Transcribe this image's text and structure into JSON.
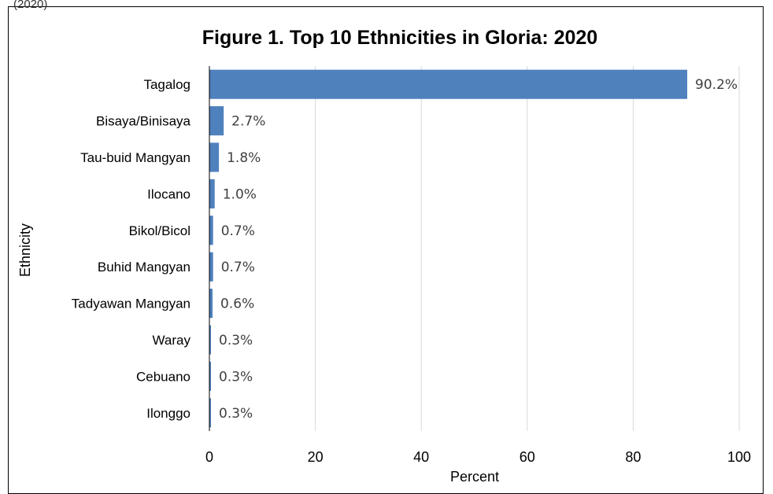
{
  "page": {
    "top_caption": "(2020)"
  },
  "chart_data": {
    "type": "bar",
    "orientation": "horizontal",
    "title": "Figure 1. Top 10 Ethnicities in Gloria: 2020",
    "xlabel": "Percent",
    "ylabel": "Ethnicity",
    "xlim": [
      0,
      100
    ],
    "xticks": [
      0,
      20,
      40,
      60,
      80,
      100
    ],
    "grid": "vertical",
    "bar_color": "#4F81BD",
    "categories": [
      "Tagalog",
      "Bisaya/Binisaya",
      "Tau-buid Mangyan",
      "Ilocano",
      "Bikol/Bicol",
      "Buhid Mangyan",
      "Tadyawan Mangyan",
      "Waray",
      "Cebuano",
      "Ilonggo"
    ],
    "values": [
      90.2,
      2.7,
      1.8,
      1.0,
      0.7,
      0.7,
      0.6,
      0.3,
      0.3,
      0.3
    ],
    "data_labels": [
      "90.2%",
      "2.7%",
      "1.8%",
      "1.0%",
      "0.7%",
      "0.7%",
      "0.6%",
      "0.3%",
      "0.3%",
      "0.3%"
    ]
  }
}
